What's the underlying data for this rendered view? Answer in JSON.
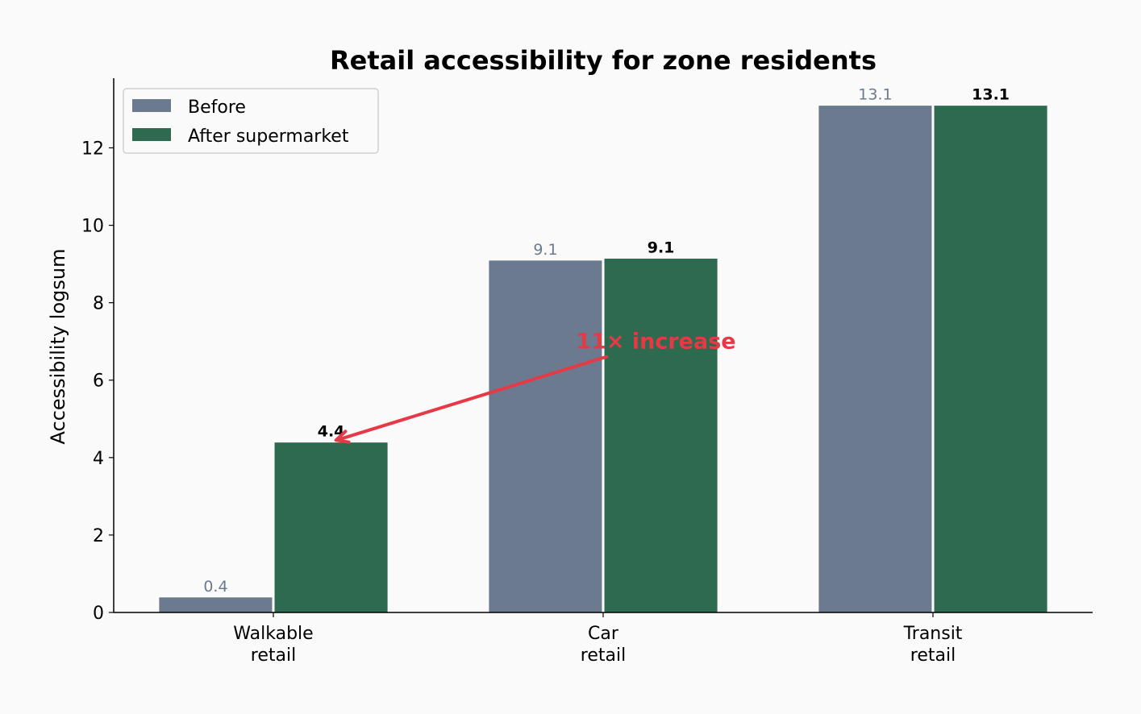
{
  "chart_data": {
    "type": "bar",
    "title": "Retail accessibility for zone residents",
    "xlabel": "",
    "ylabel": "Accessibility logsum",
    "categories": [
      "Walkable\nretail",
      "Car\nretail",
      "Transit\nretail"
    ],
    "series": [
      {
        "name": "Before",
        "values": [
          0.4,
          9.1,
          13.1
        ],
        "labels": [
          "0.4",
          "9.1",
          "13.1"
        ],
        "color": "#6b7a8f"
      },
      {
        "name": "After supermarket",
        "values": [
          4.4,
          9.15,
          13.1
        ],
        "labels": [
          "4.4",
          "9.1",
          "13.1"
        ],
        "color": "#2e6a50"
      }
    ],
    "ylim": [
      0,
      13.8
    ],
    "yticks": [
      0,
      2,
      4,
      6,
      8,
      10,
      12
    ],
    "grid": false,
    "legend": "top-left",
    "annotation": {
      "text": "11× increase",
      "xy": [
        0.19,
        4.45
      ],
      "xytext": [
        1.16,
        7.0
      ],
      "color": "#e63946"
    },
    "background": "#fafafa"
  }
}
